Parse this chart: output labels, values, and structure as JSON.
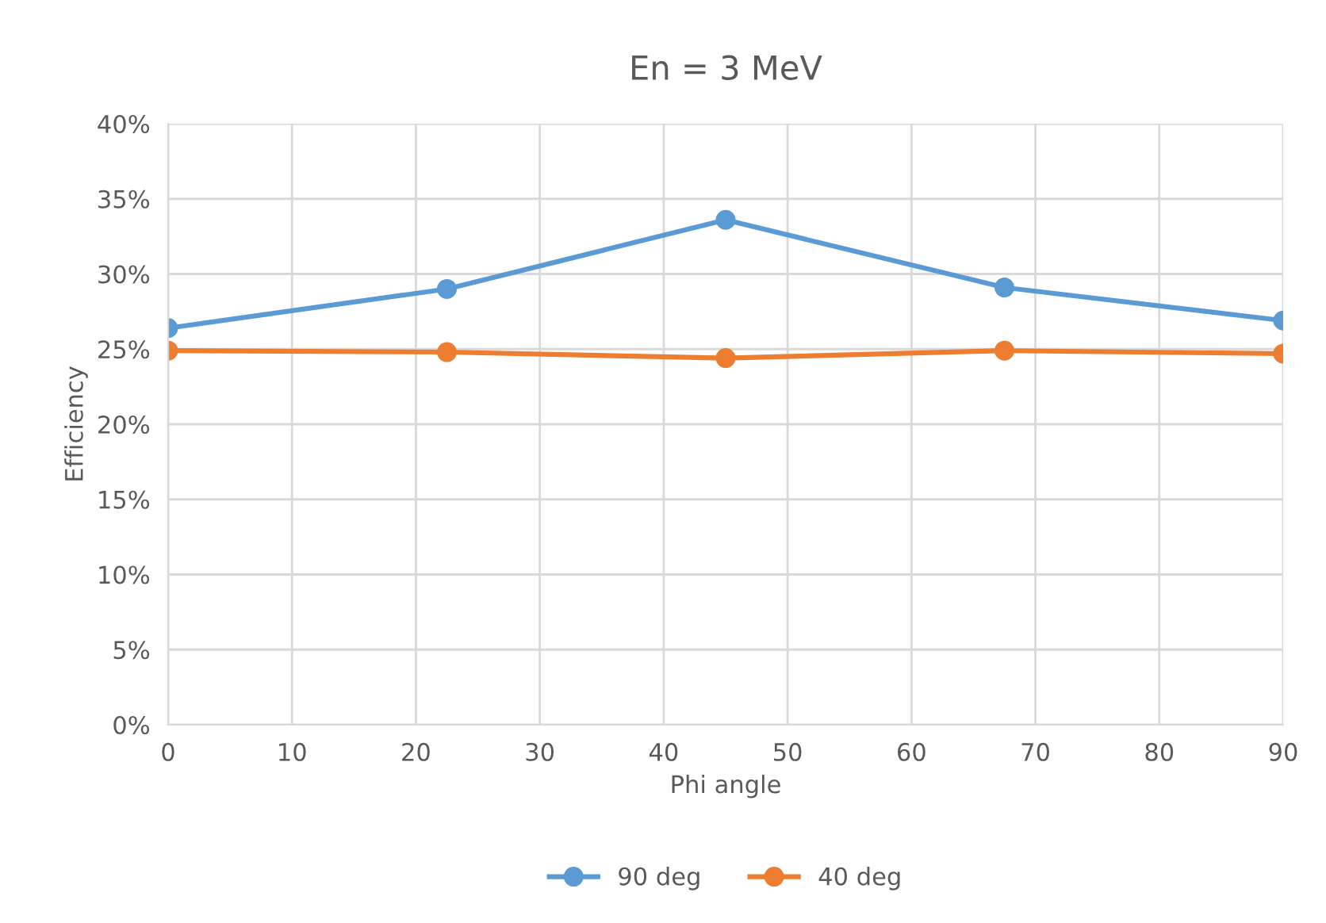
{
  "chart_data": {
    "type": "line",
    "title": "En = 3 MeV",
    "xlabel": "Phi angle",
    "ylabel": "Efficiency",
    "x": [
      0,
      22.5,
      45,
      67.5,
      90
    ],
    "series": [
      {
        "name": "90 deg",
        "color": "#5b9bd5",
        "values": [
          26.4,
          29.0,
          33.6,
          29.1,
          26.9
        ]
      },
      {
        "name": "40 deg",
        "color": "#ed7d31",
        "values": [
          24.9,
          24.8,
          24.4,
          24.9,
          24.7
        ]
      }
    ],
    "xlim": [
      0,
      90
    ],
    "xticks": [
      0,
      10,
      20,
      30,
      40,
      50,
      60,
      70,
      80,
      90
    ],
    "ylim": [
      0,
      40
    ],
    "yticks": [
      {
        "value": 0,
        "label": "0%"
      },
      {
        "value": 5,
        "label": "5%"
      },
      {
        "value": 10,
        "label": "10%"
      },
      {
        "value": 15,
        "label": "15%"
      },
      {
        "value": 20,
        "label": "20%"
      },
      {
        "value": 25,
        "label": "25%"
      },
      {
        "value": 30,
        "label": "30%"
      },
      {
        "value": 35,
        "label": "35%"
      },
      {
        "value": 40,
        "label": "40%"
      }
    ],
    "grid": true,
    "legend": "bottom",
    "marker": "circle",
    "line_style": "solid"
  }
}
